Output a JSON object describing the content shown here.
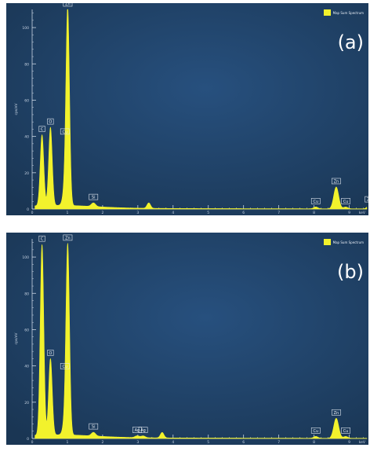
{
  "chart_data": [
    {
      "type": "line",
      "panel_label": "(a)",
      "legend": "Map Sum Spectrum",
      "ylabel": "cps/eV",
      "xlim": [
        0,
        9.5
      ],
      "ylim": [
        0,
        110
      ],
      "xticks": [
        0,
        1,
        2,
        3,
        4,
        5,
        6,
        7,
        8,
        9
      ],
      "yticks": [
        0,
        20,
        40,
        60,
        80,
        100
      ],
      "x_unit": "keV",
      "peaks": [
        {
          "x": 0.28,
          "y": 39,
          "width": 0.05,
          "label": "C"
        },
        {
          "x": 0.52,
          "y": 43,
          "width": 0.05,
          "label": "O"
        },
        {
          "x": 0.93,
          "y": 8,
          "width": 0.06,
          "label": "Cu"
        },
        {
          "x": 1.01,
          "y": 106,
          "width": 0.05,
          "label": "Zn"
        },
        {
          "x": 1.74,
          "y": 2,
          "width": 0.06,
          "label": "Si"
        },
        {
          "x": 3.31,
          "y": 3,
          "width": 0.05,
          "label": ""
        },
        {
          "x": 8.05,
          "y": 1,
          "width": 0.06,
          "label": "Cu"
        },
        {
          "x": 8.63,
          "y": 12,
          "width": 0.07,
          "label": "Zn"
        },
        {
          "x": 8.9,
          "y": 1,
          "width": 0.06,
          "label": "Cu"
        },
        {
          "x": 9.57,
          "y": 2,
          "width": 0.06,
          "label": "Zn"
        }
      ]
    },
    {
      "type": "line",
      "panel_label": "(b)",
      "legend": "Map Sum Spectrum",
      "ylabel": "cps/eV",
      "xlim": [
        0,
        9.5
      ],
      "ylim": [
        0,
        110
      ],
      "xticks": [
        0,
        1,
        2,
        3,
        4,
        5,
        6,
        7,
        8,
        9
      ],
      "yticks": [
        0,
        20,
        40,
        60,
        80,
        100
      ],
      "x_unit": "keV",
      "peaks": [
        {
          "x": 0.28,
          "y": 105,
          "width": 0.05,
          "label": "C"
        },
        {
          "x": 0.52,
          "y": 42,
          "width": 0.05,
          "label": "O"
        },
        {
          "x": 0.93,
          "y": 6,
          "width": 0.06,
          "label": "Cu"
        },
        {
          "x": 1.01,
          "y": 103,
          "width": 0.05,
          "label": "Zn"
        },
        {
          "x": 1.74,
          "y": 2,
          "width": 0.06,
          "label": "Si"
        },
        {
          "x": 2.98,
          "y": 1,
          "width": 0.06,
          "label": "Ag"
        },
        {
          "x": 3.15,
          "y": 1,
          "width": 0.06,
          "label": "Ag"
        },
        {
          "x": 3.69,
          "y": 3,
          "width": 0.05,
          "label": ""
        },
        {
          "x": 8.05,
          "y": 1,
          "width": 0.06,
          "label": "Cu"
        },
        {
          "x": 8.63,
          "y": 11,
          "width": 0.07,
          "label": "Zn"
        },
        {
          "x": 8.9,
          "y": 1,
          "width": 0.06,
          "label": "Cu"
        }
      ]
    }
  ],
  "colors": {
    "background_center": "#27507e",
    "background_edge": "#1a3654",
    "spectrum_fill": "#f2f22c",
    "axis_text": "#c7d3e2"
  }
}
